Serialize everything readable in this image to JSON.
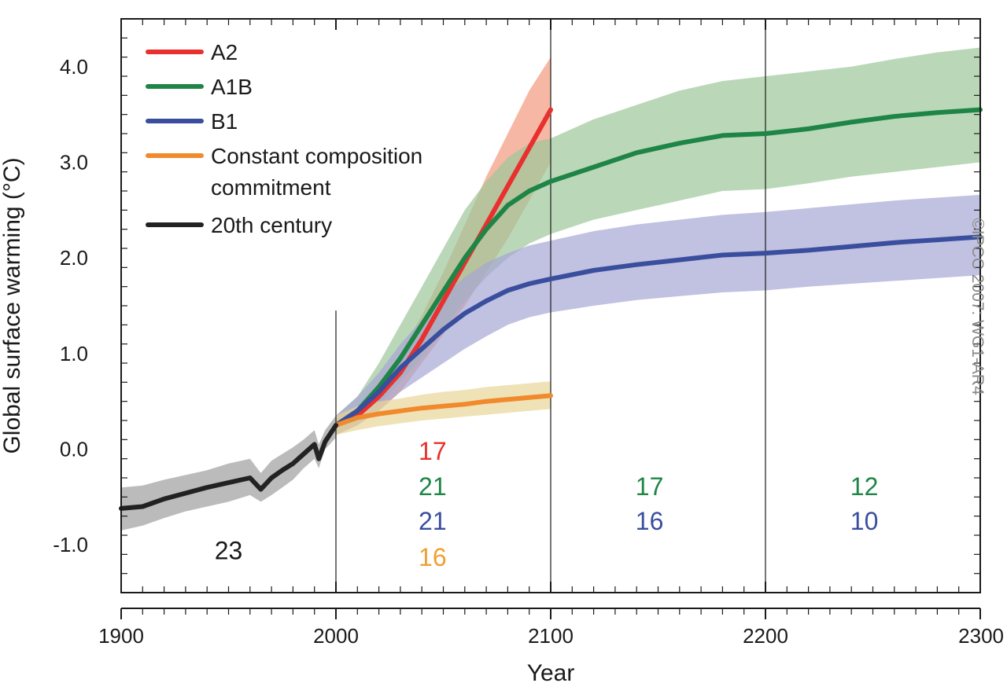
{
  "chart_data": {
    "type": "line",
    "xlabel": "Year",
    "ylabel": "Global surface warming (°C)",
    "xlim": [
      1900,
      2300
    ],
    "ylim": [
      -1.5,
      4.5
    ],
    "x_ticks": [
      1900,
      2000,
      2100,
      2200,
      2300
    ],
    "x_tick_labels": [
      "1900",
      "2000",
      "2100",
      "2200",
      "2300"
    ],
    "y_ticks": [
      -1.0,
      0.0,
      1.0,
      2.0,
      3.0,
      4.0
    ],
    "y_tick_labels": [
      "-1.0",
      "0.0",
      "1.0",
      "2.0",
      "3.0",
      "4.0"
    ],
    "vertical_dividers": [
      2000,
      2100,
      2200
    ],
    "legend_position": "top-left",
    "series": [
      {
        "name": "A2",
        "color": "#e8312f",
        "band_color": "#f29a7e",
        "x": [
          2000,
          2010,
          2020,
          2030,
          2040,
          2050,
          2060,
          2070,
          2080,
          2090,
          2100
        ],
        "y": [
          0.25,
          0.35,
          0.55,
          0.8,
          1.15,
          1.55,
          1.95,
          2.35,
          2.75,
          3.15,
          3.55
        ],
        "lower": [
          0.15,
          0.25,
          0.4,
          0.6,
          0.9,
          1.2,
          1.5,
          1.85,
          2.2,
          2.6,
          3.0
        ],
        "upper": [
          0.35,
          0.45,
          0.7,
          1.0,
          1.4,
          1.85,
          2.35,
          2.85,
          3.3,
          3.75,
          4.1
        ]
      },
      {
        "name": "A1B",
        "color": "#1e8546",
        "band_color": "#9cc89a",
        "x": [
          2000,
          2010,
          2020,
          2030,
          2040,
          2050,
          2060,
          2070,
          2080,
          2090,
          2100,
          2120,
          2140,
          2160,
          2180,
          2200,
          2220,
          2240,
          2260,
          2280,
          2300
        ],
        "y": [
          0.25,
          0.4,
          0.65,
          0.95,
          1.3,
          1.65,
          2.0,
          2.3,
          2.55,
          2.7,
          2.8,
          2.95,
          3.1,
          3.2,
          3.28,
          3.3,
          3.35,
          3.42,
          3.48,
          3.52,
          3.55
        ],
        "lower": [
          0.15,
          0.25,
          0.45,
          0.7,
          0.95,
          1.25,
          1.55,
          1.8,
          2.0,
          2.15,
          2.25,
          2.4,
          2.5,
          2.6,
          2.7,
          2.72,
          2.78,
          2.85,
          2.9,
          2.95,
          3.0
        ],
        "upper": [
          0.35,
          0.55,
          0.9,
          1.3,
          1.7,
          2.1,
          2.5,
          2.8,
          3.05,
          3.2,
          3.25,
          3.45,
          3.6,
          3.75,
          3.85,
          3.9,
          3.95,
          4.0,
          4.08,
          4.15,
          4.2
        ]
      },
      {
        "name": "B1",
        "color": "#3a4e9e",
        "band_color": "#a6a6d4",
        "x": [
          2000,
          2010,
          2020,
          2030,
          2040,
          2050,
          2060,
          2070,
          2080,
          2090,
          2100,
          2120,
          2140,
          2160,
          2180,
          2200,
          2220,
          2240,
          2260,
          2280,
          2300
        ],
        "y": [
          0.25,
          0.4,
          0.6,
          0.85,
          1.05,
          1.25,
          1.42,
          1.55,
          1.66,
          1.73,
          1.78,
          1.87,
          1.93,
          1.98,
          2.03,
          2.05,
          2.08,
          2.12,
          2.16,
          2.19,
          2.22
        ],
        "lower": [
          0.15,
          0.25,
          0.4,
          0.6,
          0.75,
          0.9,
          1.05,
          1.18,
          1.3,
          1.38,
          1.43,
          1.5,
          1.56,
          1.6,
          1.64,
          1.66,
          1.7,
          1.73,
          1.76,
          1.79,
          1.82
        ],
        "upper": [
          0.35,
          0.55,
          0.8,
          1.1,
          1.35,
          1.6,
          1.8,
          1.95,
          2.05,
          2.13,
          2.18,
          2.28,
          2.35,
          2.4,
          2.45,
          2.48,
          2.52,
          2.56,
          2.6,
          2.63,
          2.66
        ]
      },
      {
        "name": "Constant composition commitment",
        "legend_lines": [
          "Constant composition",
          "commitment"
        ],
        "color": "#f08a2c",
        "band_color": "#ead599",
        "x": [
          2000,
          2010,
          2020,
          2030,
          2040,
          2050,
          2060,
          2070,
          2080,
          2090,
          2100
        ],
        "y": [
          0.25,
          0.33,
          0.37,
          0.4,
          0.43,
          0.45,
          0.47,
          0.5,
          0.52,
          0.54,
          0.56
        ],
        "lower": [
          0.15,
          0.2,
          0.24,
          0.27,
          0.3,
          0.32,
          0.34,
          0.36,
          0.38,
          0.4,
          0.42
        ],
        "upper": [
          0.35,
          0.45,
          0.5,
          0.53,
          0.57,
          0.6,
          0.62,
          0.65,
          0.67,
          0.69,
          0.71
        ]
      },
      {
        "name": "20th century",
        "color": "#222222",
        "band_color": "#9e9e9e",
        "x": [
          1900,
          1910,
          1920,
          1930,
          1940,
          1950,
          1960,
          1965,
          1970,
          1975,
          1980,
          1985,
          1990,
          1992,
          1995,
          2000
        ],
        "y": [
          -0.62,
          -0.6,
          -0.52,
          -0.46,
          -0.4,
          -0.35,
          -0.3,
          -0.42,
          -0.3,
          -0.22,
          -0.15,
          -0.05,
          0.05,
          -0.1,
          0.08,
          0.25
        ],
        "lower": [
          -0.85,
          -0.8,
          -0.72,
          -0.65,
          -0.6,
          -0.55,
          -0.48,
          -0.55,
          -0.48,
          -0.4,
          -0.32,
          -0.2,
          -0.1,
          -0.2,
          0.0,
          0.12
        ],
        "upper": [
          -0.4,
          -0.38,
          -0.32,
          -0.27,
          -0.22,
          -0.15,
          -0.1,
          -0.25,
          -0.12,
          -0.05,
          0.02,
          0.1,
          0.2,
          0.05,
          0.2,
          0.35
        ]
      }
    ],
    "annotations": [
      {
        "text": "23",
        "x": 1950,
        "y": -1.06,
        "color": "#1a1a1a"
      },
      {
        "text": "17",
        "x": 2045,
        "y": -0.02,
        "color": "#e8312f"
      },
      {
        "text": "21",
        "x": 2045,
        "y": -0.39,
        "color": "#1e8546"
      },
      {
        "text": "21",
        "x": 2045,
        "y": -0.75,
        "color": "#3a4e9e"
      },
      {
        "text": "16",
        "x": 2045,
        "y": -1.13,
        "color": "#f0a030"
      },
      {
        "text": "17",
        "x": 2146,
        "y": -0.39,
        "color": "#1e8546"
      },
      {
        "text": "16",
        "x": 2146,
        "y": -0.75,
        "color": "#3a4e9e"
      },
      {
        "text": "12",
        "x": 2246,
        "y": -0.39,
        "color": "#1e8546"
      },
      {
        "text": "10",
        "x": 2246,
        "y": -0.75,
        "color": "#3a4e9e"
      }
    ],
    "copyright": "©IPCC 2007: WG1-AR4"
  }
}
